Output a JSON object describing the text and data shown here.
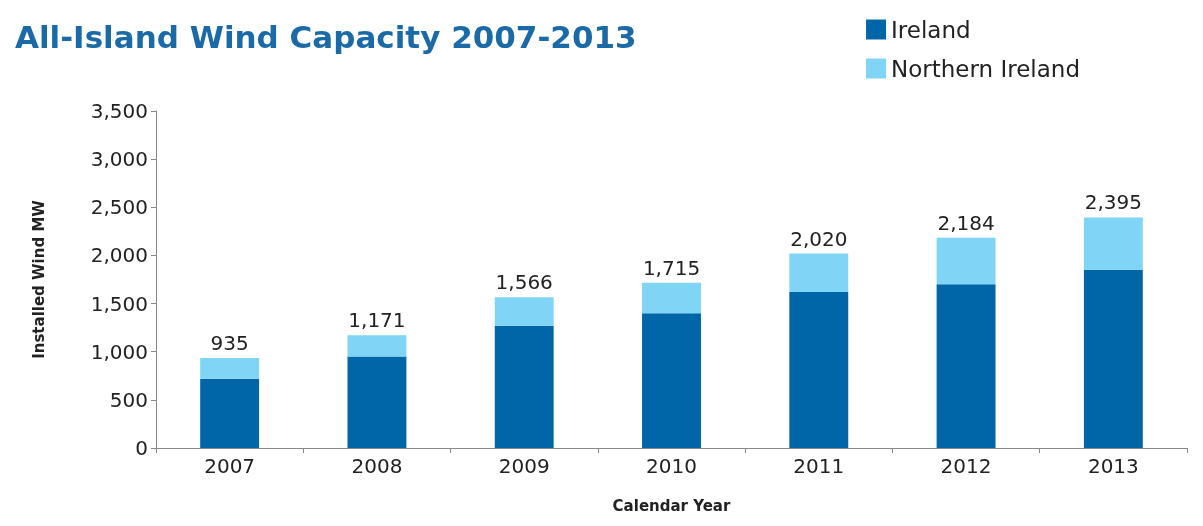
{
  "chart_data": {
    "type": "bar",
    "title": "All-Island Wind Capacity 2007-2013",
    "xlabel": "Calendar Year",
    "ylabel": "Installed Wind MW",
    "categories": [
      "2007",
      "2008",
      "2009",
      "2010",
      "2011",
      "2012",
      "2013"
    ],
    "stacked": true,
    "series": [
      {
        "name": "Ireland",
        "color": "#0066a8",
        "values": [
          720,
          950,
          1270,
          1400,
          1620,
          1700,
          1850
        ]
      },
      {
        "name": "Northern Ireland",
        "color": "#80d4f6",
        "values": [
          215,
          221,
          296,
          315,
          400,
          484,
          545
        ]
      }
    ],
    "totals": [
      "935",
      "1,171",
      "1,566",
      "1,715",
      "2,020",
      "2,184",
      "2,395"
    ],
    "ylim": [
      0,
      3500
    ],
    "yticks": [
      0,
      500,
      {
        "value": 1000,
        "label": "1,000"
      },
      {
        "value": 1500,
        "label": "1,500"
      },
      {
        "value": 2000,
        "label": "2,000"
      },
      {
        "value": 2500,
        "label": "2,500"
      },
      {
        "value": 3000,
        "label": "3,000"
      },
      {
        "value": 3500,
        "label": "3,500"
      }
    ],
    "grid": false,
    "legend": "top right"
  }
}
